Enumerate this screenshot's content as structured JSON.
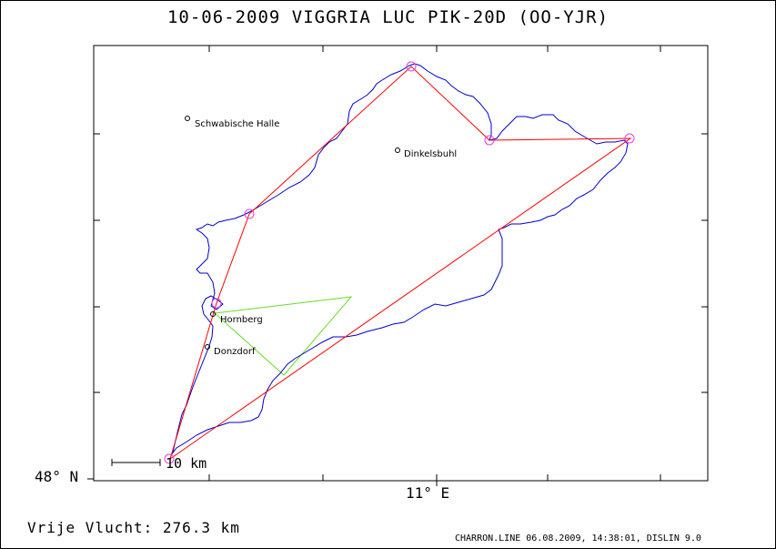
{
  "title": "10-06-2009    VIGGRIA LUC    PIK-20D (OO-YJR)",
  "axes": {
    "lat_label": "48° N",
    "lon_label": "11° E"
  },
  "scale": {
    "label": "10 km"
  },
  "distance": "Vrije Vlucht:  276.3 km",
  "footer": "CHARRON.LINE 06.08.2009, 14:38:01, DISLIN 9.0",
  "towns": [
    {
      "name": "Schwabische Halle"
    },
    {
      "name": "Dinkelsbuhl"
    },
    {
      "name": "Hornberg"
    },
    {
      "name": "Donzdorf"
    }
  ],
  "colors": {
    "track": "#0000cc",
    "task": "#ff0000",
    "triangle": "#66dd22",
    "turnpoint": "#e040e0"
  }
}
